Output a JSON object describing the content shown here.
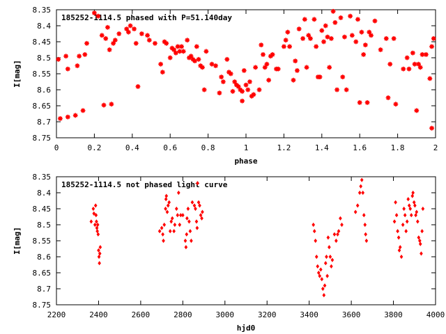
{
  "chart_data": [
    {
      "type": "scatter",
      "title": "185252-1114.5 phased with P=51.140day",
      "xlabel": "phase",
      "ylabel": "I[mag]",
      "xlim": [
        0,
        2
      ],
      "ylim": [
        8.35,
        8.75
      ],
      "y_inverted": true,
      "grid": false,
      "marker": "star",
      "color": "#ff0000",
      "x_ticks": [
        0,
        0.2,
        0.4,
        0.6,
        0.8,
        1,
        1.2,
        1.4,
        1.6,
        1.8,
        2
      ],
      "x_tick_labels": [
        "0",
        "0.2",
        "0.4",
        "0.6",
        "0.8",
        "1",
        "1.2",
        "1.4",
        "1.6",
        "1.8",
        "2"
      ],
      "y_ticks": [
        8.35,
        8.4,
        8.45,
        8.5,
        8.55,
        8.6,
        8.65,
        8.7,
        8.75
      ],
      "y_tick_labels": [
        "8.35",
        "8.4",
        "8.45",
        "8.5",
        "8.55",
        "8.6",
        "8.65",
        "8.7",
        "8.75"
      ],
      "points": [
        [
          0.01,
          8.505
        ],
        [
          0.02,
          8.69
        ],
        [
          0.05,
          8.495
        ],
        [
          0.06,
          8.535
        ],
        [
          0.06,
          8.685
        ],
        [
          0.1,
          8.68
        ],
        [
          0.11,
          8.525
        ],
        [
          0.12,
          8.495
        ],
        [
          0.14,
          8.665
        ],
        [
          0.15,
          8.49
        ],
        [
          0.16,
          8.455
        ],
        [
          0.2,
          8.36
        ],
        [
          0.22,
          8.37
        ],
        [
          0.24,
          8.43
        ],
        [
          0.25,
          8.648
        ],
        [
          0.26,
          8.44
        ],
        [
          0.27,
          8.405
        ],
        [
          0.28,
          8.475
        ],
        [
          0.29,
          8.645
        ],
        [
          0.3,
          8.455
        ],
        [
          0.31,
          8.445
        ],
        [
          0.33,
          8.425
        ],
        [
          0.37,
          8.41
        ],
        [
          0.38,
          8.42
        ],
        [
          0.39,
          8.4
        ],
        [
          0.41,
          8.41
        ],
        [
          0.42,
          8.455
        ],
        [
          0.43,
          8.59
        ],
        [
          0.45,
          8.425
        ],
        [
          0.48,
          8.43
        ],
        [
          0.49,
          8.445
        ],
        [
          0.52,
          8.455
        ],
        [
          0.55,
          8.52
        ],
        [
          0.56,
          8.545
        ],
        [
          0.57,
          8.45
        ],
        [
          0.58,
          8.455
        ],
        [
          0.6,
          8.5
        ],
        [
          0.61,
          8.47
        ],
        [
          0.62,
          8.475
        ],
        [
          0.63,
          8.485
        ],
        [
          0.64,
          8.465
        ],
        [
          0.65,
          8.48
        ],
        [
          0.66,
          8.465
        ],
        [
          0.67,
          8.48
        ],
        [
          0.69,
          8.445
        ],
        [
          0.7,
          8.5
        ],
        [
          0.71,
          8.495
        ],
        [
          0.72,
          8.505
        ],
        [
          0.73,
          8.51
        ],
        [
          0.74,
          8.465
        ],
        [
          0.75,
          8.505
        ],
        [
          0.76,
          8.525
        ],
        [
          0.77,
          8.53
        ],
        [
          0.78,
          8.6
        ],
        [
          0.79,
          8.48
        ],
        [
          0.82,
          8.52
        ],
        [
          0.84,
          8.525
        ],
        [
          0.86,
          8.61
        ],
        [
          0.87,
          8.56
        ],
        [
          0.88,
          8.575
        ],
        [
          0.9,
          8.505
        ],
        [
          0.91,
          8.545
        ],
        [
          0.92,
          8.55
        ],
        [
          0.93,
          8.605
        ],
        [
          0.94,
          8.575
        ],
        [
          0.95,
          8.585
        ],
        [
          0.96,
          8.59
        ],
        [
          0.97,
          8.6
        ],
        [
          0.98,
          8.605
        ],
        [
          0.98,
          8.635
        ],
        [
          0.99,
          8.54
        ],
        [
          1.0,
          8.585
        ],
        [
          1.01,
          8.6
        ],
        [
          1.02,
          8.575
        ],
        [
          1.03,
          8.62
        ],
        [
          1.04,
          8.615
        ],
        [
          1.05,
          8.53
        ],
        [
          1.07,
          8.6
        ],
        [
          1.08,
          8.46
        ],
        [
          1.09,
          8.49
        ],
        [
          1.1,
          8.53
        ],
        [
          1.11,
          8.52
        ],
        [
          1.12,
          8.57
        ],
        [
          1.13,
          8.495
        ],
        [
          1.14,
          8.49
        ],
        [
          1.16,
          8.535
        ],
        [
          1.17,
          8.535
        ],
        [
          1.2,
          8.465
        ],
        [
          1.21,
          8.445
        ],
        [
          1.22,
          8.42
        ],
        [
          1.23,
          8.465
        ],
        [
          1.25,
          8.57
        ],
        [
          1.26,
          8.51
        ],
        [
          1.27,
          8.54
        ],
        [
          1.28,
          8.41
        ],
        [
          1.3,
          8.44
        ],
        [
          1.31,
          8.38
        ],
        [
          1.32,
          8.53
        ],
        [
          1.33,
          8.43
        ],
        [
          1.34,
          8.44
        ],
        [
          1.36,
          8.38
        ],
        [
          1.37,
          8.465
        ],
        [
          1.38,
          8.56
        ],
        [
          1.39,
          8.56
        ],
        [
          1.4,
          8.415
        ],
        [
          1.41,
          8.45
        ],
        [
          1.42,
          8.4
        ],
        [
          1.43,
          8.435
        ],
        [
          1.44,
          8.53
        ],
        [
          1.45,
          8.44
        ],
        [
          1.46,
          8.355
        ],
        [
          1.47,
          8.39
        ],
        [
          1.48,
          8.6
        ],
        [
          1.5,
          8.375
        ],
        [
          1.51,
          8.56
        ],
        [
          1.52,
          8.435
        ],
        [
          1.53,
          8.6
        ],
        [
          1.55,
          8.37
        ],
        [
          1.56,
          8.43
        ],
        [
          1.58,
          8.45
        ],
        [
          1.59,
          8.38
        ],
        [
          1.6,
          8.64
        ],
        [
          1.61,
          8.42
        ],
        [
          1.62,
          8.49
        ],
        [
          1.63,
          8.46
        ],
        [
          1.64,
          8.64
        ],
        [
          1.65,
          8.42
        ],
        [
          1.66,
          8.43
        ],
        [
          1.68,
          8.385
        ],
        [
          1.71,
          8.475
        ],
        [
          1.74,
          8.44
        ],
        [
          1.75,
          8.625
        ],
        [
          1.76,
          8.52
        ],
        [
          1.78,
          8.44
        ],
        [
          1.79,
          8.645
        ],
        [
          1.83,
          8.535
        ],
        [
          1.85,
          8.5
        ],
        [
          1.86,
          8.535
        ],
        [
          1.88,
          8.485
        ],
        [
          1.89,
          8.52
        ],
        [
          1.9,
          8.665
        ],
        [
          1.91,
          8.52
        ],
        [
          1.92,
          8.53
        ],
        [
          1.93,
          8.49
        ],
        [
          1.95,
          8.49
        ],
        [
          1.97,
          8.565
        ],
        [
          1.98,
          8.72
        ],
        [
          1.98,
          8.465
        ],
        [
          1.99,
          8.44
        ]
      ]
    },
    {
      "type": "scatter",
      "title": "185252-1114.5 not phased light curve",
      "xlabel": "hjd0",
      "ylabel": "I[mag]",
      "xlim": [
        2200,
        4000
      ],
      "ylim": [
        8.35,
        8.75
      ],
      "y_inverted": true,
      "grid": false,
      "marker": "diamond",
      "color": "#ff0000",
      "x_ticks": [
        2200,
        2400,
        2600,
        2800,
        3000,
        3200,
        3400,
        3600,
        3800,
        4000
      ],
      "x_tick_labels": [
        "2200",
        "2400",
        "2600",
        "2800",
        "3000",
        "3200",
        "3400",
        "3600",
        "3800",
        "4000"
      ],
      "y_ticks": [
        8.35,
        8.4,
        8.45,
        8.5,
        8.55,
        8.6,
        8.65,
        8.7,
        8.75
      ],
      "y_tick_labels": [
        "8.35",
        "8.4",
        "8.45",
        "8.5",
        "8.55",
        "8.6",
        "8.65",
        "8.7",
        "8.75"
      ],
      "points": [
        [
          2365,
          8.49
        ],
        [
          2375,
          8.45
        ],
        [
          2378,
          8.465
        ],
        [
          2383,
          8.5
        ],
        [
          2386,
          8.44
        ],
        [
          2388,
          8.47
        ],
        [
          2390,
          8.49
        ],
        [
          2392,
          8.51
        ],
        [
          2394,
          8.52
        ],
        [
          2396,
          8.5
        ],
        [
          2398,
          8.53
        ],
        [
          2400,
          8.58
        ],
        [
          2402,
          8.6
        ],
        [
          2404,
          8.62
        ],
        [
          2406,
          8.59
        ],
        [
          2408,
          8.57
        ],
        [
          2690,
          8.52
        ],
        [
          2700,
          8.51
        ],
        [
          2705,
          8.53
        ],
        [
          2708,
          8.55
        ],
        [
          2712,
          8.5
        ],
        [
          2718,
          8.45
        ],
        [
          2720,
          8.42
        ],
        [
          2722,
          8.41
        ],
        [
          2726,
          8.46
        ],
        [
          2730,
          8.44
        ],
        [
          2735,
          8.43
        ],
        [
          2740,
          8.52
        ],
        [
          2745,
          8.49
        ],
        [
          2750,
          8.48
        ],
        [
          2758,
          8.52
        ],
        [
          2762,
          8.5
        ],
        [
          2770,
          8.45
        ],
        [
          2775,
          8.47
        ],
        [
          2780,
          8.4
        ],
        [
          2785,
          8.5
        ],
        [
          2790,
          8.47
        ],
        [
          2800,
          8.47
        ],
        [
          2812,
          8.55
        ],
        [
          2815,
          8.57
        ],
        [
          2818,
          8.53
        ],
        [
          2820,
          8.48
        ],
        [
          2825,
          8.45
        ],
        [
          2830,
          8.49
        ],
        [
          2835,
          8.52
        ],
        [
          2840,
          8.55
        ],
        [
          2845,
          8.43
        ],
        [
          2855,
          8.44
        ],
        [
          2860,
          8.45
        ],
        [
          2865,
          8.49
        ],
        [
          2868,
          8.51
        ],
        [
          2870,
          8.37
        ],
        [
          2875,
          8.43
        ],
        [
          2880,
          8.44
        ],
        [
          2885,
          8.47
        ],
        [
          2890,
          8.48
        ],
        [
          2893,
          8.46
        ],
        [
          3420,
          8.5
        ],
        [
          3425,
          8.52
        ],
        [
          3430,
          8.55
        ],
        [
          3435,
          8.6
        ],
        [
          3440,
          8.63
        ],
        [
          3445,
          8.65
        ],
        [
          3450,
          8.66
        ],
        [
          3455,
          8.64
        ],
        [
          3460,
          8.67
        ],
        [
          3465,
          8.7
        ],
        [
          3470,
          8.72
        ],
        [
          3474,
          8.69
        ],
        [
          3478,
          8.62
        ],
        [
          3482,
          8.6
        ],
        [
          3486,
          8.66
        ],
        [
          3490,
          8.54
        ],
        [
          3495,
          8.57
        ],
        [
          3500,
          8.6
        ],
        [
          3505,
          8.63
        ],
        [
          3510,
          8.61
        ],
        [
          3520,
          8.53
        ],
        [
          3528,
          8.55
        ],
        [
          3535,
          8.53
        ],
        [
          3540,
          8.52
        ],
        [
          3548,
          8.48
        ],
        [
          3555,
          8.5
        ],
        [
          3620,
          8.46
        ],
        [
          3630,
          8.44
        ],
        [
          3640,
          8.4
        ],
        [
          3645,
          8.38
        ],
        [
          3650,
          8.36
        ],
        [
          3655,
          8.4
        ],
        [
          3660,
          8.47
        ],
        [
          3665,
          8.5
        ],
        [
          3668,
          8.53
        ],
        [
          3672,
          8.55
        ],
        [
          3805,
          8.49
        ],
        [
          3810,
          8.43
        ],
        [
          3815,
          8.47
        ],
        [
          3820,
          8.52
        ],
        [
          3825,
          8.54
        ],
        [
          3828,
          8.58
        ],
        [
          3832,
          8.57
        ],
        [
          3838,
          8.6
        ],
        [
          3845,
          8.5
        ],
        [
          3850,
          8.45
        ],
        [
          3855,
          8.47
        ],
        [
          3860,
          8.52
        ],
        [
          3865,
          8.49
        ],
        [
          3870,
          8.42
        ],
        [
          3875,
          8.44
        ],
        [
          3880,
          8.45
        ],
        [
          3885,
          8.47
        ],
        [
          3890,
          8.41
        ],
        [
          3893,
          8.4
        ],
        [
          3898,
          8.43
        ],
        [
          3902,
          8.44
        ],
        [
          3906,
          8.47
        ],
        [
          3910,
          8.46
        ],
        [
          3915,
          8.49
        ],
        [
          3920,
          8.54
        ],
        [
          3925,
          8.55
        ],
        [
          3928,
          8.56
        ],
        [
          3932,
          8.59
        ],
        [
          3936,
          8.52
        ],
        [
          3940,
          8.45
        ]
      ]
    }
  ]
}
